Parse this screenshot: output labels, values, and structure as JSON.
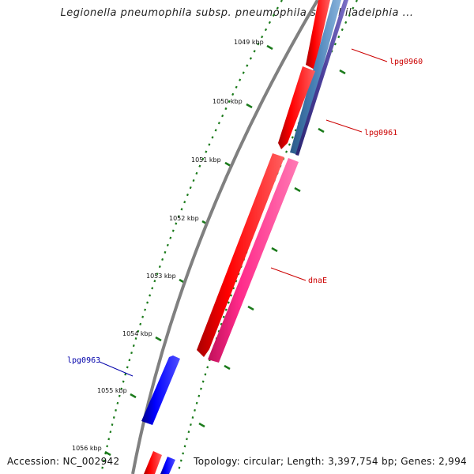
{
  "title": "Legionella pneumophila subsp. pneumophila str. Philadelphia ...",
  "footer": {
    "accession": "Accession: NC_002942",
    "summary": "Topology: circular; Length: 3,397,754 bp; Genes: 2,994"
  },
  "colors": {
    "backbone": "#808080",
    "gene_red": "#ff0000",
    "gene_pink": "#ff2a8a",
    "gene_blue": "#0000ff",
    "gene_steel": "#4a82b8",
    "gene_purple": "#4b3f9a",
    "tick_green": "#1a7a1a",
    "label_red": "#cc0000",
    "label_blue": "#0000aa"
  },
  "kbp_ticks": [
    "1049 kbp",
    "1050 kbp",
    "1051 kbp",
    "1052 kbp",
    "1053 kbp",
    "1054 kbp",
    "1055 kbp",
    "1056 kbp"
  ],
  "gene_labels": [
    {
      "text": "lpg0960",
      "color": "red"
    },
    {
      "text": "lpg0961",
      "color": "red"
    },
    {
      "text": "dnaE",
      "color": "red"
    },
    {
      "text": "lpg0963",
      "color": "blue"
    }
  ]
}
